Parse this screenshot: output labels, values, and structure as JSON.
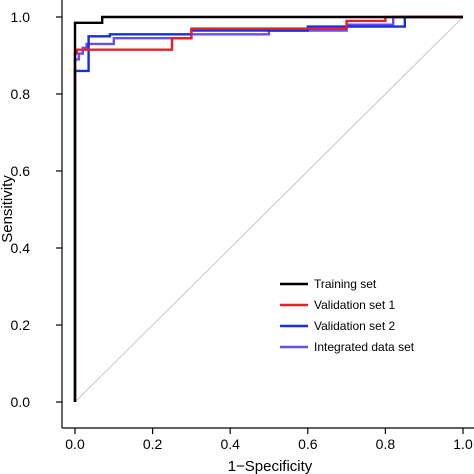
{
  "chart_data": {
    "type": "line",
    "title": "",
    "xlabel": "1−Specificity",
    "ylabel": "Sensitivity",
    "xlim": [
      0,
      1
    ],
    "ylim": [
      0,
      1
    ],
    "x_ticks": [
      "0.0",
      "0.2",
      "0.4",
      "0.6",
      "0.8",
      "1.0"
    ],
    "y_ticks": [
      "0.0",
      "0.2",
      "0.4",
      "0.6",
      "0.8",
      "1.0"
    ],
    "grid": false,
    "legend_position": "bottom-right",
    "reference_line": {
      "from": [
        0,
        0
      ],
      "to": [
        1,
        1
      ],
      "color": "#c8c8c8"
    },
    "series": [
      {
        "name": "Training set",
        "color": "#000000",
        "points": [
          [
            0,
            0
          ],
          [
            0,
            0.985
          ],
          [
            0.07,
            0.985
          ],
          [
            0.07,
            1.0
          ],
          [
            1.0,
            1.0
          ]
        ]
      },
      {
        "name": "Validation set 1",
        "color": "#e8202a",
        "points": [
          [
            0,
            0
          ],
          [
            0,
            0.905
          ],
          [
            0.005,
            0.905
          ],
          [
            0.005,
            0.915
          ],
          [
            0.25,
            0.915
          ],
          [
            0.25,
            0.945
          ],
          [
            0.3,
            0.945
          ],
          [
            0.3,
            0.97
          ],
          [
            0.7,
            0.97
          ],
          [
            0.7,
            0.99
          ],
          [
            0.8,
            0.99
          ],
          [
            0.8,
            1.0
          ],
          [
            1.0,
            1.0
          ]
        ]
      },
      {
        "name": "Validation set 2",
        "color": "#1a2fd6",
        "points": [
          [
            0,
            0
          ],
          [
            0,
            0.86
          ],
          [
            0.035,
            0.86
          ],
          [
            0.035,
            0.95
          ],
          [
            0.09,
            0.95
          ],
          [
            0.09,
            0.955
          ],
          [
            0.3,
            0.955
          ],
          [
            0.3,
            0.965
          ],
          [
            0.6,
            0.965
          ],
          [
            0.6,
            0.975
          ],
          [
            0.85,
            0.975
          ],
          [
            0.85,
            1.0
          ],
          [
            1.0,
            1.0
          ]
        ]
      },
      {
        "name": "Integrated data set",
        "color": "#6a4cf0",
        "points": [
          [
            0,
            0
          ],
          [
            0,
            0.89
          ],
          [
            0.01,
            0.89
          ],
          [
            0.01,
            0.905
          ],
          [
            0.02,
            0.905
          ],
          [
            0.02,
            0.92
          ],
          [
            0.03,
            0.92
          ],
          [
            0.03,
            0.93
          ],
          [
            0.1,
            0.93
          ],
          [
            0.1,
            0.945
          ],
          [
            0.3,
            0.945
          ],
          [
            0.3,
            0.955
          ],
          [
            0.5,
            0.955
          ],
          [
            0.5,
            0.965
          ],
          [
            0.7,
            0.965
          ],
          [
            0.7,
            0.98
          ],
          [
            0.82,
            0.98
          ],
          [
            0.82,
            1.0
          ],
          [
            1.0,
            1.0
          ]
        ]
      }
    ]
  }
}
